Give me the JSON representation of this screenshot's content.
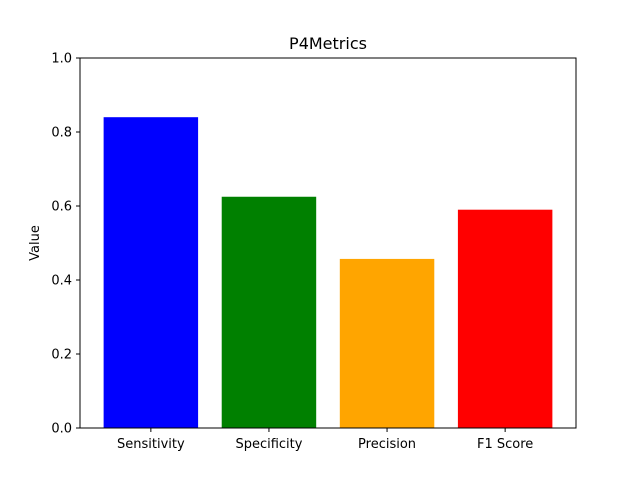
{
  "chart_data": {
    "type": "bar",
    "title": "P4Metrics",
    "xlabel": "",
    "ylabel": "Value",
    "categories": [
      "Sensitivity",
      "Specificity",
      "Precision",
      "F1 Score"
    ],
    "values": [
      0.84,
      0.625,
      0.457,
      0.59
    ],
    "colors": [
      "#0000ff",
      "#008000",
      "#ffa500",
      "#ff0000"
    ],
    "ylim": [
      0,
      1.0
    ],
    "yticks": [
      "0.0",
      "0.2",
      "0.4",
      "0.6",
      "0.8",
      "1.0"
    ],
    "grid": false,
    "legend": "none"
  }
}
